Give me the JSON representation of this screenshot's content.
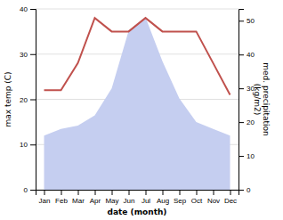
{
  "chart_data": {
    "type": "line",
    "categories": [
      "Jan",
      "Feb",
      "Mar",
      "Apr",
      "May",
      "Jun",
      "Jul",
      "Aug",
      "Sep",
      "Oct",
      "Nov",
      "Dec"
    ],
    "series": [
      {
        "type": "area",
        "color": "#c5cef0",
        "axis": "y2",
        "values": [
          16,
          18,
          19,
          22,
          30,
          47,
          51,
          38,
          27,
          20,
          18,
          16
        ]
      },
      {
        "type": "line",
        "color": "#c0514d",
        "values": [
          22,
          22,
          28,
          38,
          35,
          35,
          38,
          35,
          35,
          35,
          28,
          21
        ]
      }
    ],
    "xlabel": "date (month)",
    "ylabel": "max temp (C)",
    "y2label": "med. precipitation\n(kg/m2)",
    "ylim": [
      0,
      40
    ],
    "yticks": [
      0,
      10,
      20,
      30,
      40
    ],
    "y2lim": [
      0,
      53.5
    ],
    "y2ticks": [
      0,
      10,
      20,
      30,
      40,
      50
    ],
    "grid": true
  }
}
